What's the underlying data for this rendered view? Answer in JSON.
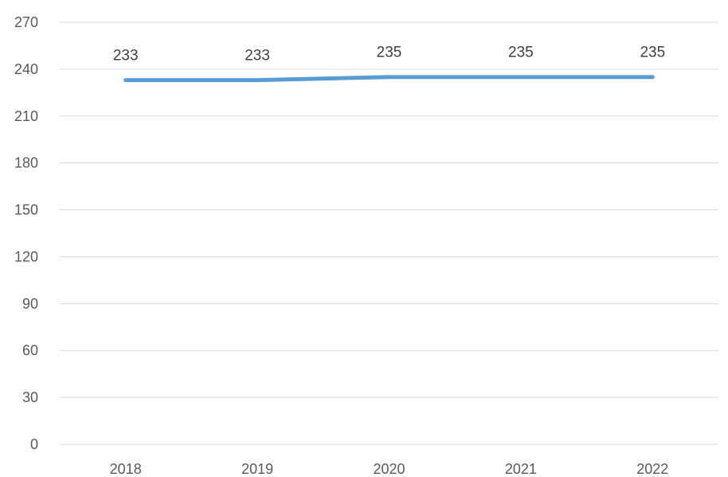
{
  "chart_data": {
    "type": "line",
    "title": "",
    "xlabel": "",
    "ylabel": "",
    "categories": [
      "2018",
      "2019",
      "2020",
      "2021",
      "2022"
    ],
    "series": [
      {
        "values": [
          233,
          233,
          235,
          235,
          235
        ],
        "color": "#5b9bd5",
        "data_labels": [
          "233",
          "233",
          "235",
          "235",
          "235"
        ]
      }
    ],
    "ylim": [
      0,
      270
    ],
    "yticks": [
      0,
      30,
      60,
      90,
      120,
      150,
      180,
      210,
      240,
      270
    ],
    "ytick_labels": [
      "0",
      "30",
      "60",
      "90",
      "120",
      "150",
      "180",
      "210",
      "240",
      "270"
    ],
    "grid": true,
    "legend": "none"
  }
}
